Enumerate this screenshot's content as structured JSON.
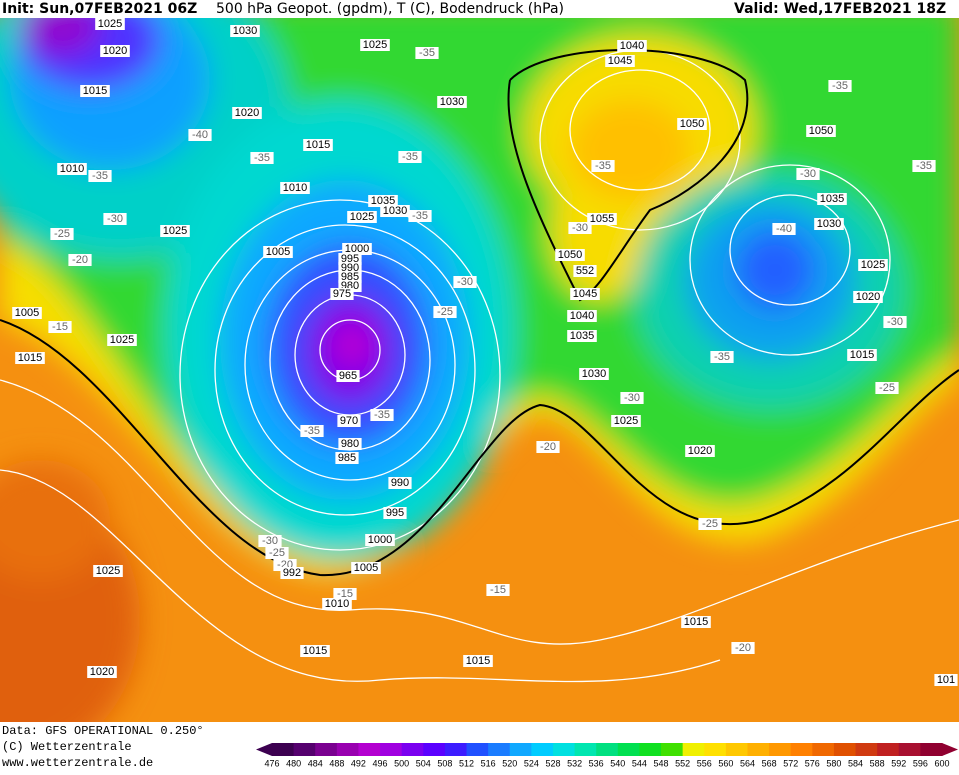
{
  "header": {
    "init": "Init: Sun,07FEB2021 06Z",
    "title": "500 hPa Geopot. (gpdm), T (C), Bodendruck (hPa)",
    "valid": "Valid: Wed,17FEB2021 18Z"
  },
  "map": {
    "labels": [
      "1025",
      "1020",
      "1015",
      "1010",
      "-35",
      "-30",
      "-25",
      "-20",
      "1005",
      "-15",
      "1015",
      "1025",
      "1025",
      "1030",
      "1025",
      "-35",
      "1020",
      "-40",
      "-35",
      "1015",
      "-35",
      "1010",
      "1030",
      "1035",
      "1030",
      "1025",
      "-35",
      "1005",
      "1000",
      "995",
      "990",
      "985",
      "980",
      "975",
      "-30",
      "-25",
      "965",
      "970",
      "-35",
      "-35",
      "980",
      "985",
      "990",
      "995",
      "1000",
      "1005",
      "-30",
      "-25",
      "-20",
      "992",
      "-15",
      "1010",
      "1025",
      "1020",
      "1015",
      "1015",
      "-20",
      "-15",
      "1040",
      "1045",
      "1050",
      "-35",
      "1055",
      "-30",
      "1050",
      "552",
      "1045",
      "1040",
      "1035",
      "1030",
      "-30",
      "1025",
      "1020",
      "-25",
      "1015",
      "-20",
      "-35",
      "1050",
      "-30",
      "1035",
      "-40",
      "1030",
      "1025",
      "1020",
      "-30",
      "1015",
      "-35",
      "-25",
      "-35",
      "101"
    ]
  },
  "footer": {
    "source": "Data: GFS OPERATIONAL 0.250°",
    "copyright": "(C) Wetterzentrale",
    "url": "www.wetterzentrale.de"
  },
  "colorbar": {
    "labels": [
      476,
      480,
      484,
      488,
      492,
      496,
      500,
      504,
      508,
      512,
      516,
      520,
      524,
      528,
      532,
      536,
      540,
      544,
      548,
      552,
      556,
      560,
      564,
      568,
      572,
      576,
      580,
      584,
      588,
      592,
      596,
      600
    ],
    "colors": [
      "#3c0050",
      "#55006e",
      "#7a0090",
      "#9900b0",
      "#b400d0",
      "#a000e0",
      "#7a00f0",
      "#5a00ff",
      "#3c1cff",
      "#2050ff",
      "#1a7cff",
      "#10a8ff",
      "#00ccff",
      "#00e0e0",
      "#00e6b0",
      "#00e080",
      "#00e050",
      "#10e020",
      "#40e000",
      "#f0f000",
      "#ffe000",
      "#ffc800",
      "#ffb000",
      "#ff9800",
      "#ff8000",
      "#f06800",
      "#e05000",
      "#d03a10",
      "#c02020",
      "#a81030",
      "#900030"
    ]
  }
}
